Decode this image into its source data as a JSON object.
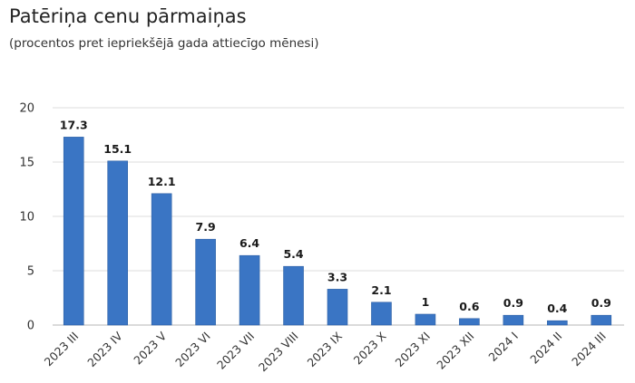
{
  "colors": {
    "bar": "#3a75c4",
    "bar_stroke": "#2d5fa3",
    "grid": "#dcdcdc",
    "axis": "#b5b5b5"
  },
  "chart_data": {
    "type": "bar",
    "title": "Patēriņa cenu pārmaiņas",
    "subtitle": "(procentos pret iepriekšējā gada attiecīgo mēnesi)",
    "xlabel": "",
    "ylabel": "",
    "ylim": [
      0,
      20
    ],
    "yticks": [
      0,
      5,
      10,
      15,
      20
    ],
    "grid": true,
    "legend": "none",
    "categories": [
      "2023 III",
      "2023 IV",
      "2023 V",
      "2023 VI",
      "2023 VII",
      "2023 VIII",
      "2023 IX",
      "2023 X",
      "2023 XI",
      "2023 XII",
      "2024 I",
      "2024 II",
      "2024 III"
    ],
    "values": [
      17.3,
      15.1,
      12.1,
      7.9,
      6.4,
      5.4,
      3.3,
      2.1,
      1,
      0.6,
      0.9,
      0.4,
      0.9
    ],
    "value_labels": [
      "17.3",
      "15.1",
      "12.1",
      "7.9",
      "6.4",
      "5.4",
      "3.3",
      "2.1",
      "1",
      "0.6",
      "0.9",
      "0.4",
      "0.9"
    ]
  }
}
